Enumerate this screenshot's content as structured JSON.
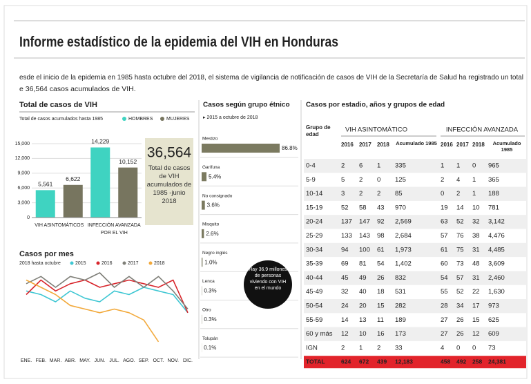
{
  "header": {
    "title": "Informe estadístico de la epidemia del VIH en Honduras",
    "intro": [
      "esde el inicio de la epidemia en 1985 hasta octubre del 2018, el sistema de vigilancia de notificación de casos de VIH de la Secretaría de Salud ha registrado un total",
      "e 36,564 casos acumulados de VIH."
    ]
  },
  "chart_data": [
    {
      "type": "bar",
      "title": "Total de casos de VIH",
      "subtitle": "Total de casos acumulados hasta 1985",
      "categories": [
        "VIH ASINTOMÁTICOS",
        "INFECCIÓN AVANZADA POR EL VIH"
      ],
      "series": [
        {
          "name": "HOMBRES",
          "color": "#3fd3c1",
          "values": [
            5561,
            14229
          ],
          "value_labels": [
            "5,561",
            "14,229"
          ]
        },
        {
          "name": "MUJERES",
          "color": "#77755f",
          "values": [
            6622,
            10152
          ],
          "value_labels": [
            "6,622",
            "10,152"
          ]
        }
      ],
      "ylim": [
        0,
        15000
      ],
      "yticks": [
        0,
        {
          "value": 3000,
          "label": "3,000"
        },
        {
          "value": 6000,
          "label": "6,000"
        },
        {
          "value": 9000,
          "label": "9,000"
        },
        {
          "value": 12000,
          "label": "12,000"
        },
        {
          "value": 15000,
          "label": "15,000"
        }
      ],
      "grid": true,
      "annotation": {
        "value": "36,564",
        "text": "Total de casos de VIH acumulados de 1985 -junio 2018"
      }
    },
    {
      "type": "line",
      "title": "Casos por mes",
      "subtitle": "2018 hasta octubre",
      "categories": [
        "ENE.",
        "FEB.",
        "MAR.",
        "ABR.",
        "MAY.",
        "JUN.",
        "JUL.",
        "AGO.",
        "SEP.",
        "OCT.",
        "NOV.",
        "DIC."
      ],
      "series": [
        {
          "name": "2015",
          "color": "#3fc7d3",
          "values": [
            75,
            70,
            60,
            75,
            65,
            60,
            75,
            70,
            80,
            75,
            70,
            45
          ]
        },
        {
          "name": "2016",
          "color": "#d8262c",
          "values": [
            70,
            90,
            75,
            85,
            90,
            80,
            85,
            90,
            85,
            80,
            90,
            45
          ]
        },
        {
          "name": "2017",
          "color": "#7f7f78",
          "values": [
            85,
            95,
            80,
            95,
            90,
            100,
            80,
            95,
            80,
            95,
            75,
            50
          ]
        },
        {
          "name": "2018",
          "color": "#f2a93b",
          "values": [
            90,
            80,
            70,
            55,
            50,
            45,
            50,
            45,
            35,
            5,
            null,
            null
          ]
        }
      ]
    },
    {
      "type": "hbar",
      "title": "Casos según grupo étnico",
      "subtitle": "▸ 2015 a octubre de 2018",
      "categories": [
        "Mestizo",
        "Garífuna",
        "No consignado",
        "Misquito",
        "Negro inglés",
        "Lenca",
        "Otro",
        "Tolupán"
      ],
      "values": [
        86.8,
        5.4,
        3.6,
        2.6,
        1.0,
        0.3,
        0.3,
        0.1
      ],
      "value_labels": [
        "86.8%",
        "5.4%",
        "3.6%",
        "2.6%",
        "1.0%",
        "0.3%",
        "0.3%",
        "0.1%"
      ],
      "color": "#7b7a60",
      "annotation": "Hay 36.9 millones de personas viviendo con VIH en el mundo"
    }
  ],
  "table": {
    "title": "Casos por estadio, años y grupos de edad",
    "groups": [
      "VIH ASINTOMÁTICO",
      "INFECCIÓN AVANZADA"
    ],
    "columns": [
      "Grupo de edad",
      "2016",
      "2017",
      "2018",
      "Acumulado 1985",
      "2016",
      "2017",
      "2018",
      "Acumulado 1985"
    ],
    "rows": [
      [
        "0-4",
        "2",
        "6",
        "1",
        "335",
        "1",
        "1",
        "0",
        "965"
      ],
      [
        "5-9",
        "5",
        "2",
        "0",
        "125",
        "2",
        "4",
        "1",
        "365"
      ],
      [
        "10-14",
        "3",
        "2",
        "2",
        "85",
        "0",
        "2",
        "1",
        "188"
      ],
      [
        "15-19",
        "52",
        "58",
        "43",
        "970",
        "19",
        "14",
        "10",
        "781"
      ],
      [
        "20-24",
        "137",
        "147",
        "92",
        "2,569",
        "63",
        "52",
        "32",
        "3,142"
      ],
      [
        "25-29",
        "133",
        "143",
        "98",
        "2,684",
        "57",
        "76",
        "38",
        "4,476"
      ],
      [
        "30-34",
        "94",
        "100",
        "61",
        "1,973",
        "61",
        "75",
        "31",
        "4,485"
      ],
      [
        "35-39",
        "69",
        "81",
        "54",
        "1,402",
        "60",
        "73",
        "48",
        "3,609"
      ],
      [
        "40-44",
        "45",
        "49",
        "26",
        "832",
        "54",
        "57",
        "31",
        "2,460"
      ],
      [
        "45-49",
        "32",
        "40",
        "18",
        "531",
        "55",
        "52",
        "22",
        "1,630"
      ],
      [
        "50-54",
        "24",
        "20",
        "15",
        "282",
        "28",
        "34",
        "17",
        "973"
      ],
      [
        "55-59",
        "14",
        "13",
        "11",
        "189",
        "27",
        "26",
        "15",
        "625"
      ],
      [
        "60 y más",
        "12",
        "10",
        "16",
        "173",
        "27",
        "26",
        "12",
        "609"
      ],
      [
        "IGN",
        "2",
        "1",
        "2",
        "33",
        "4",
        "0",
        "0",
        "73"
      ],
      [
        "TOTAL",
        "624",
        "672",
        "439",
        "12,183",
        "458",
        "492",
        "258",
        "24,381"
      ]
    ]
  }
}
